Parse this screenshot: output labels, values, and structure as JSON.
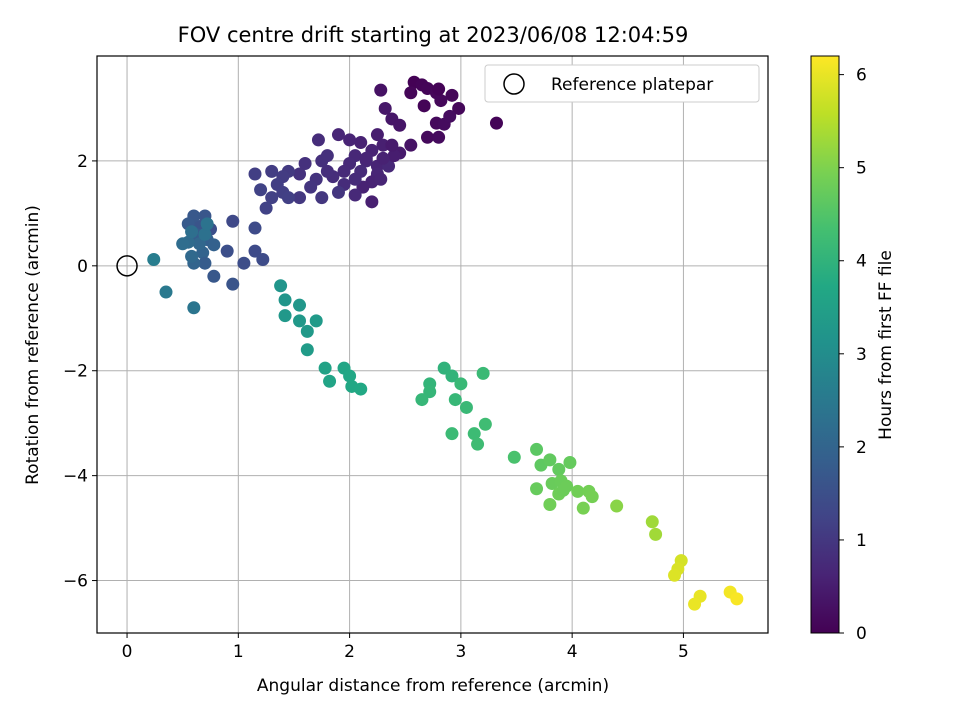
{
  "chart_data": {
    "type": "scatter",
    "title": "FOV centre drift starting at 2023/06/08 12:04:59",
    "xlabel": "Angular distance from reference (arcmin)",
    "ylabel": "Rotation from reference (arcmin)",
    "xlim": [
      -0.27,
      5.76
    ],
    "ylim": [
      -7.0,
      4.0
    ],
    "xticks": [
      0,
      1,
      2,
      3,
      4,
      5
    ],
    "xtick_labels": [
      "0",
      "1",
      "2",
      "3",
      "4",
      "5"
    ],
    "yticks": [
      -6,
      -4,
      -2,
      0,
      2
    ],
    "ytick_labels": [
      "−6",
      "−4",
      "−2",
      "0",
      "2"
    ],
    "grid": true,
    "legend": {
      "placement": "upper right",
      "entries": [
        "Reference platepar"
      ]
    },
    "reference_point": {
      "x": 0,
      "y": 0,
      "label": "Reference platepar"
    },
    "colorbar": {
      "label": "Hours from first FF file",
      "range": [
        0,
        6.2
      ],
      "ticks": [
        0,
        1,
        2,
        3,
        4,
        5,
        6
      ],
      "tick_labels": [
        "0",
        "1",
        "2",
        "3",
        "4",
        "5",
        "6"
      ],
      "colormap": "viridis"
    },
    "points": [
      {
        "x": 2.58,
        "y": 3.5,
        "h": 0.02
      },
      {
        "x": 2.65,
        "y": 3.45,
        "h": 0.05
      },
      {
        "x": 2.7,
        "y": 3.38,
        "h": 0.07
      },
      {
        "x": 2.78,
        "y": 3.3,
        "h": 0.1
      },
      {
        "x": 2.82,
        "y": 3.15,
        "h": 0.12
      },
      {
        "x": 2.55,
        "y": 3.3,
        "h": 0.08
      },
      {
        "x": 2.67,
        "y": 3.05,
        "h": 0.06
      },
      {
        "x": 2.92,
        "y": 3.25,
        "h": 0.1
      },
      {
        "x": 2.98,
        "y": 3.0,
        "h": 0.12
      },
      {
        "x": 2.78,
        "y": 2.72,
        "h": 0.15
      },
      {
        "x": 2.85,
        "y": 2.7,
        "h": 0.18
      },
      {
        "x": 2.7,
        "y": 2.45,
        "h": 0.14
      },
      {
        "x": 2.8,
        "y": 2.45,
        "h": 0.16
      },
      {
        "x": 2.9,
        "y": 2.85,
        "h": 0.2
      },
      {
        "x": 3.32,
        "y": 2.72,
        "h": 0.05
      },
      {
        "x": 2.8,
        "y": 3.37,
        "h": 0.04
      },
      {
        "x": 2.28,
        "y": 3.35,
        "h": 0.3
      },
      {
        "x": 2.32,
        "y": 3.0,
        "h": 0.4
      },
      {
        "x": 2.38,
        "y": 2.8,
        "h": 0.38
      },
      {
        "x": 2.45,
        "y": 2.68,
        "h": 0.35
      },
      {
        "x": 2.55,
        "y": 2.3,
        "h": 0.32
      },
      {
        "x": 2.45,
        "y": 2.15,
        "h": 0.45
      },
      {
        "x": 2.25,
        "y": 2.5,
        "h": 0.5
      },
      {
        "x": 2.3,
        "y": 2.3,
        "h": 0.55
      },
      {
        "x": 2.2,
        "y": 2.2,
        "h": 0.6
      },
      {
        "x": 2.1,
        "y": 2.35,
        "h": 0.58
      },
      {
        "x": 2.0,
        "y": 2.4,
        "h": 0.62
      },
      {
        "x": 1.9,
        "y": 2.5,
        "h": 0.65
      },
      {
        "x": 2.15,
        "y": 2.0,
        "h": 0.68
      },
      {
        "x": 2.25,
        "y": 1.9,
        "h": 0.62
      },
      {
        "x": 2.05,
        "y": 2.1,
        "h": 0.7
      },
      {
        "x": 2.0,
        "y": 1.95,
        "h": 0.72
      },
      {
        "x": 2.1,
        "y": 1.8,
        "h": 0.75
      },
      {
        "x": 2.25,
        "y": 1.75,
        "h": 0.66
      },
      {
        "x": 2.35,
        "y": 1.9,
        "h": 0.7
      },
      {
        "x": 2.2,
        "y": 1.6,
        "h": 0.6
      },
      {
        "x": 2.28,
        "y": 1.65,
        "h": 0.63
      },
      {
        "x": 2.12,
        "y": 1.5,
        "h": 0.58
      },
      {
        "x": 2.2,
        "y": 1.22,
        "h": 0.55
      },
      {
        "x": 2.05,
        "y": 1.35,
        "h": 0.72
      },
      {
        "x": 1.95,
        "y": 1.55,
        "h": 0.78
      },
      {
        "x": 1.85,
        "y": 1.7,
        "h": 0.8
      },
      {
        "x": 1.8,
        "y": 1.8,
        "h": 0.82
      },
      {
        "x": 1.75,
        "y": 2.0,
        "h": 0.85
      },
      {
        "x": 1.8,
        "y": 2.1,
        "h": 0.86
      },
      {
        "x": 1.72,
        "y": 2.4,
        "h": 0.8
      },
      {
        "x": 1.6,
        "y": 1.95,
        "h": 0.88
      },
      {
        "x": 1.55,
        "y": 1.75,
        "h": 0.9
      },
      {
        "x": 1.7,
        "y": 1.65,
        "h": 0.92
      },
      {
        "x": 1.65,
        "y": 1.5,
        "h": 0.95
      },
      {
        "x": 1.75,
        "y": 1.3,
        "h": 0.98
      },
      {
        "x": 1.9,
        "y": 1.4,
        "h": 0.96
      },
      {
        "x": 1.55,
        "y": 1.3,
        "h": 1.0
      },
      {
        "x": 1.45,
        "y": 1.8,
        "h": 1.05
      },
      {
        "x": 1.4,
        "y": 1.7,
        "h": 1.08
      },
      {
        "x": 1.3,
        "y": 1.8,
        "h": 1.1
      },
      {
        "x": 1.35,
        "y": 1.55,
        "h": 1.12
      },
      {
        "x": 1.4,
        "y": 1.4,
        "h": 1.15
      },
      {
        "x": 1.3,
        "y": 1.3,
        "h": 1.18
      },
      {
        "x": 1.25,
        "y": 1.1,
        "h": 1.2
      },
      {
        "x": 1.15,
        "y": 1.75,
        "h": 1.15
      },
      {
        "x": 1.2,
        "y": 1.45,
        "h": 1.22
      },
      {
        "x": 1.45,
        "y": 1.3,
        "h": 1.16
      },
      {
        "x": 2.4,
        "y": 2.1,
        "h": 0.5
      },
      {
        "x": 2.38,
        "y": 2.3,
        "h": 0.45
      },
      {
        "x": 2.15,
        "y": 2.05,
        "h": 0.64
      },
      {
        "x": 1.95,
        "y": 1.8,
        "h": 0.74
      },
      {
        "x": 2.05,
        "y": 1.65,
        "h": 0.76
      },
      {
        "x": 2.3,
        "y": 2.05,
        "h": 0.58
      },
      {
        "x": 0.95,
        "y": 0.85,
        "h": 1.35
      },
      {
        "x": 1.15,
        "y": 0.72,
        "h": 1.4
      },
      {
        "x": 0.75,
        "y": 0.7,
        "h": 1.5
      },
      {
        "x": 0.65,
        "y": 0.75,
        "h": 1.6
      },
      {
        "x": 0.7,
        "y": 0.95,
        "h": 1.65
      },
      {
        "x": 0.6,
        "y": 0.95,
        "h": 1.7
      },
      {
        "x": 0.55,
        "y": 0.8,
        "h": 1.75
      },
      {
        "x": 0.62,
        "y": 0.6,
        "h": 1.8
      },
      {
        "x": 0.72,
        "y": 0.5,
        "h": 1.85
      },
      {
        "x": 0.78,
        "y": 0.4,
        "h": 1.9
      },
      {
        "x": 0.68,
        "y": 0.25,
        "h": 1.95
      },
      {
        "x": 0.9,
        "y": 0.28,
        "h": 1.5
      },
      {
        "x": 1.05,
        "y": 0.05,
        "h": 1.45
      },
      {
        "x": 1.15,
        "y": 0.28,
        "h": 1.4
      },
      {
        "x": 1.22,
        "y": 0.12,
        "h": 1.42
      },
      {
        "x": 0.95,
        "y": -0.35,
        "h": 1.6
      },
      {
        "x": 0.78,
        "y": -0.2,
        "h": 1.7
      },
      {
        "x": 0.7,
        "y": 0.05,
        "h": 1.8
      },
      {
        "x": 0.6,
        "y": 0.05,
        "h": 2.0
      },
      {
        "x": 0.58,
        "y": 0.18,
        "h": 2.1
      },
      {
        "x": 0.65,
        "y": 0.42,
        "h": 2.05
      },
      {
        "x": 0.55,
        "y": 0.45,
        "h": 2.15
      },
      {
        "x": 0.5,
        "y": 0.42,
        "h": 2.2
      },
      {
        "x": 0.6,
        "y": -0.8,
        "h": 2.4
      },
      {
        "x": 0.35,
        "y": -0.5,
        "h": 2.5
      },
      {
        "x": 0.24,
        "y": 0.12,
        "h": 2.6
      },
      {
        "x": 0.58,
        "y": 0.65,
        "h": 2.25
      },
      {
        "x": 0.7,
        "y": 0.6,
        "h": 2.3
      },
      {
        "x": 0.72,
        "y": 0.8,
        "h": 2.35
      },
      {
        "x": 1.38,
        "y": -0.38,
        "h": 3.2
      },
      {
        "x": 1.42,
        "y": -0.65,
        "h": 3.22
      },
      {
        "x": 1.55,
        "y": -0.75,
        "h": 3.25
      },
      {
        "x": 1.42,
        "y": -0.95,
        "h": 3.28
      },
      {
        "x": 1.55,
        "y": -1.05,
        "h": 3.3
      },
      {
        "x": 1.62,
        "y": -1.25,
        "h": 3.32
      },
      {
        "x": 1.7,
        "y": -1.05,
        "h": 3.34
      },
      {
        "x": 1.62,
        "y": -1.6,
        "h": 3.38
      },
      {
        "x": 1.78,
        "y": -1.95,
        "h": 3.55
      },
      {
        "x": 1.82,
        "y": -2.2,
        "h": 3.6
      },
      {
        "x": 1.95,
        "y": -1.95,
        "h": 3.65
      },
      {
        "x": 2.0,
        "y": -2.1,
        "h": 3.68
      },
      {
        "x": 2.02,
        "y": -2.3,
        "h": 3.7
      },
      {
        "x": 2.1,
        "y": -2.35,
        "h": 3.72
      },
      {
        "x": 2.85,
        "y": -1.95,
        "h": 4.0
      },
      {
        "x": 2.92,
        "y": -2.1,
        "h": 4.02
      },
      {
        "x": 2.72,
        "y": -2.25,
        "h": 4.05
      },
      {
        "x": 2.72,
        "y": -2.4,
        "h": 4.08
      },
      {
        "x": 2.65,
        "y": -2.55,
        "h": 4.1
      },
      {
        "x": 2.95,
        "y": -2.55,
        "h": 4.12
      },
      {
        "x": 3.0,
        "y": -2.25,
        "h": 4.14
      },
      {
        "x": 3.05,
        "y": -2.7,
        "h": 4.16
      },
      {
        "x": 3.2,
        "y": -2.05,
        "h": 4.18
      },
      {
        "x": 2.92,
        "y": -3.2,
        "h": 4.2
      },
      {
        "x": 3.12,
        "y": -3.2,
        "h": 4.22
      },
      {
        "x": 3.15,
        "y": -3.4,
        "h": 4.24
      },
      {
        "x": 3.22,
        "y": -3.02,
        "h": 4.26
      },
      {
        "x": 3.48,
        "y": -3.65,
        "h": 4.4
      },
      {
        "x": 3.68,
        "y": -3.5,
        "h": 4.6
      },
      {
        "x": 3.72,
        "y": -3.8,
        "h": 4.65
      },
      {
        "x": 3.8,
        "y": -3.7,
        "h": 4.68
      },
      {
        "x": 3.88,
        "y": -3.88,
        "h": 4.7
      },
      {
        "x": 3.98,
        "y": -3.75,
        "h": 4.72
      },
      {
        "x": 3.68,
        "y": -4.25,
        "h": 4.74
      },
      {
        "x": 3.82,
        "y": -4.15,
        "h": 4.76
      },
      {
        "x": 3.9,
        "y": -4.1,
        "h": 4.78
      },
      {
        "x": 3.95,
        "y": -4.2,
        "h": 4.8
      },
      {
        "x": 3.88,
        "y": -4.35,
        "h": 4.82
      },
      {
        "x": 3.8,
        "y": -4.55,
        "h": 4.84
      },
      {
        "x": 4.05,
        "y": -4.3,
        "h": 4.86
      },
      {
        "x": 4.15,
        "y": -4.3,
        "h": 4.88
      },
      {
        "x": 4.18,
        "y": -4.4,
        "h": 4.9
      },
      {
        "x": 4.1,
        "y": -4.62,
        "h": 4.92
      },
      {
        "x": 3.92,
        "y": -4.28,
        "h": 4.8
      },
      {
        "x": 4.4,
        "y": -4.58,
        "h": 5.1
      },
      {
        "x": 4.72,
        "y": -4.88,
        "h": 5.3
      },
      {
        "x": 4.75,
        "y": -5.12,
        "h": 5.32
      },
      {
        "x": 4.98,
        "y": -5.62,
        "h": 5.8
      },
      {
        "x": 4.95,
        "y": -5.78,
        "h": 5.85
      },
      {
        "x": 4.92,
        "y": -5.9,
        "h": 5.88
      },
      {
        "x": 5.15,
        "y": -6.3,
        "h": 6.0
      },
      {
        "x": 5.1,
        "y": -6.45,
        "h": 6.02
      },
      {
        "x": 5.42,
        "y": -6.22,
        "h": 6.1
      },
      {
        "x": 5.48,
        "y": -6.35,
        "h": 6.15
      }
    ]
  }
}
